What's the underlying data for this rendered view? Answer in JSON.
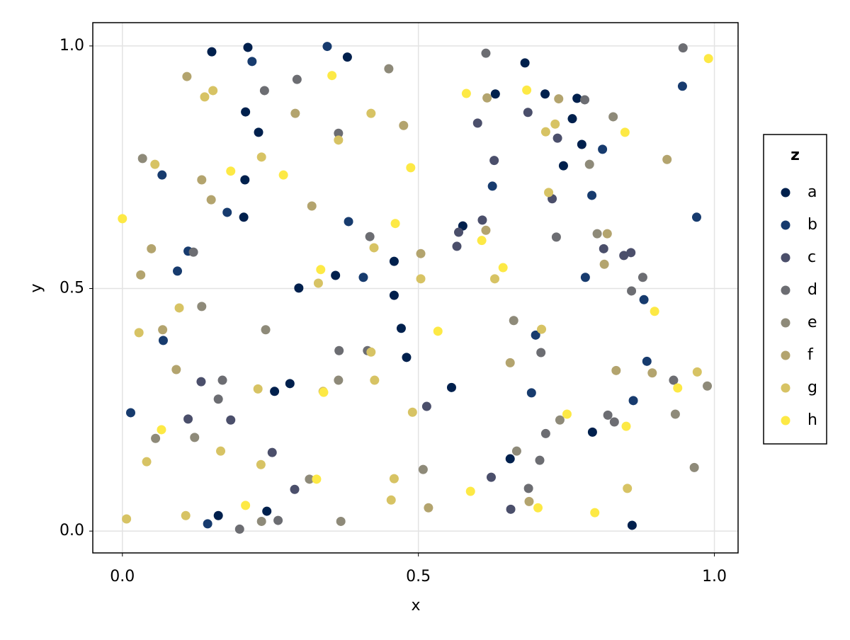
{
  "chart_data": {
    "type": "scatter",
    "x_label": "x",
    "y_label": "y",
    "legend_title": "z",
    "legend": "right",
    "grid": true,
    "xlim": [
      -0.05,
      1.04
    ],
    "ylim": [
      -0.045,
      1.048
    ],
    "xticks": [
      {
        "value": 0,
        "label": "0.0"
      },
      0.5,
      {
        "value": 1,
        "label": "1.0"
      }
    ],
    "yticks": [
      {
        "value": 0,
        "label": "0.0"
      },
      0.5,
      {
        "value": 1,
        "label": "1.0"
      }
    ],
    "series": [
      {
        "name": "a",
        "color": "#00204d",
        "x": [
          0.151,
          0.212,
          0.38,
          0.68,
          0.768,
          0.76,
          0.208,
          0.23,
          0.207,
          0.205,
          0.298,
          0.36,
          0.459,
          0.459,
          0.471,
          0.48,
          0.575,
          0.556,
          0.257,
          0.283,
          0.794,
          0.655,
          0.244,
          0.162,
          0.861,
          0.63,
          0.714,
          0.776,
          0.745
        ],
        "values": [
          0.988,
          0.997,
          0.977,
          0.965,
          0.892,
          0.85,
          0.864,
          0.822,
          0.724,
          0.647,
          0.501,
          0.527,
          0.556,
          0.486,
          0.418,
          0.358,
          0.629,
          0.296,
          0.288,
          0.304,
          0.204,
          0.149,
          0.041,
          0.032,
          0.012,
          0.901,
          0.901,
          0.797,
          0.753
        ]
      },
      {
        "name": "b",
        "color": "#173b6e",
        "x": [
          0.346,
          0.219,
          0.946,
          0.067,
          0.177,
          0.382,
          0.97,
          0.811,
          0.625,
          0.793,
          0.093,
          0.111,
          0.407,
          0.069,
          0.881,
          0.886,
          0.698,
          0.691,
          0.014,
          0.863,
          0.144,
          0.782
        ],
        "values": [
          0.999,
          0.968,
          0.917,
          0.734,
          0.657,
          0.638,
          0.647,
          0.787,
          0.711,
          0.692,
          0.536,
          0.577,
          0.523,
          0.393,
          0.477,
          0.35,
          0.404,
          0.285,
          0.244,
          0.269,
          0.015,
          0.523
        ]
      },
      {
        "name": "c",
        "color": "#4b4f6b",
        "x": [
          0.6,
          0.628,
          0.608,
          0.726,
          0.735,
          0.565,
          0.568,
          0.813,
          0.847,
          0.859,
          0.183,
          0.253,
          0.291,
          0.656,
          0.623,
          0.514,
          0.133,
          0.111,
          0.685
        ],
        "values": [
          0.841,
          0.764,
          0.641,
          0.685,
          0.81,
          0.587,
          0.616,
          0.582,
          0.568,
          0.574,
          0.229,
          0.162,
          0.086,
          0.045,
          0.111,
          0.257,
          0.308,
          0.231,
          0.863
        ]
      },
      {
        "name": "d",
        "color": "#6c6d72",
        "x": [
          0.614,
          0.781,
          0.24,
          0.295,
          0.365,
          0.418,
          0.12,
          0.931,
          0.86,
          0.879,
          0.82,
          0.831,
          0.169,
          0.162,
          0.263,
          0.198,
          0.366,
          0.733,
          0.707,
          0.715,
          0.686,
          0.705,
          0.947,
          0.414
        ],
        "values": [
          0.985,
          0.889,
          0.908,
          0.931,
          0.82,
          0.607,
          0.575,
          0.311,
          0.495,
          0.523,
          0.239,
          0.225,
          0.311,
          0.272,
          0.022,
          0.004,
          0.372,
          0.606,
          0.368,
          0.201,
          0.088,
          0.146,
          0.996,
          0.372
        ]
      },
      {
        "name": "e",
        "color": "#8e8a79",
        "x": [
          0.45,
          0.034,
          0.829,
          0.789,
          0.802,
          0.134,
          0.242,
          0.122,
          0.056,
          0.988,
          0.966,
          0.661,
          0.508,
          0.235,
          0.369,
          0.934,
          0.739,
          0.666,
          0.365,
          0.316
        ],
        "values": [
          0.953,
          0.768,
          0.854,
          0.756,
          0.613,
          0.463,
          0.415,
          0.193,
          0.191,
          0.299,
          0.131,
          0.434,
          0.127,
          0.02,
          0.02,
          0.241,
          0.229,
          0.165,
          0.311,
          0.107
        ]
      },
      {
        "name": "f",
        "color": "#b3a46e",
        "x": [
          0.109,
          0.292,
          0.475,
          0.134,
          0.15,
          0.049,
          0.031,
          0.32,
          0.091,
          0.068,
          0.504,
          0.517,
          0.895,
          0.834,
          0.814,
          0.616,
          0.737,
          0.614,
          0.655,
          0.687,
          0.92,
          0.819
        ],
        "values": [
          0.937,
          0.861,
          0.836,
          0.724,
          0.683,
          0.582,
          0.528,
          0.67,
          0.333,
          0.415,
          0.572,
          0.048,
          0.326,
          0.331,
          0.55,
          0.893,
          0.891,
          0.62,
          0.347,
          0.061,
          0.766,
          0.613
        ]
      },
      {
        "name": "g",
        "color": "#d7c364",
        "x": [
          0.153,
          0.139,
          0.42,
          0.235,
          0.055,
          0.096,
          0.028,
          0.041,
          0.166,
          0.229,
          0.339,
          0.426,
          0.425,
          0.504,
          0.49,
          0.629,
          0.731,
          0.715,
          0.72,
          0.708,
          0.971,
          0.853,
          0.459,
          0.454,
          0.007,
          0.107,
          0.42,
          0.331,
          0.234,
          0.365
        ],
        "values": [
          0.908,
          0.895,
          0.861,
          0.771,
          0.756,
          0.46,
          0.409,
          0.143,
          0.165,
          0.293,
          0.288,
          0.311,
          0.584,
          0.52,
          0.245,
          0.52,
          0.839,
          0.823,
          0.698,
          0.416,
          0.328,
          0.088,
          0.108,
          0.064,
          0.025,
          0.032,
          0.369,
          0.511,
          0.137,
          0.806
        ]
      },
      {
        "name": "h",
        "color": "#fde945",
        "x": [
          0.354,
          0.581,
          0.683,
          0.183,
          0.272,
          0.487,
          0.461,
          0.335,
          0.607,
          0.643,
          0.533,
          0.849,
          0.899,
          0.938,
          0.99,
          0.0,
          0.066,
          0.751,
          0.851,
          0.328,
          0.588,
          0.702,
          0.798,
          0.208,
          0.34
        ],
        "values": [
          0.939,
          0.902,
          0.909,
          0.742,
          0.734,
          0.749,
          0.634,
          0.539,
          0.599,
          0.543,
          0.412,
          0.822,
          0.453,
          0.295,
          0.974,
          0.644,
          0.209,
          0.241,
          0.216,
          0.107,
          0.082,
          0.048,
          0.038,
          0.053,
          0.286
        ]
      }
    ]
  }
}
